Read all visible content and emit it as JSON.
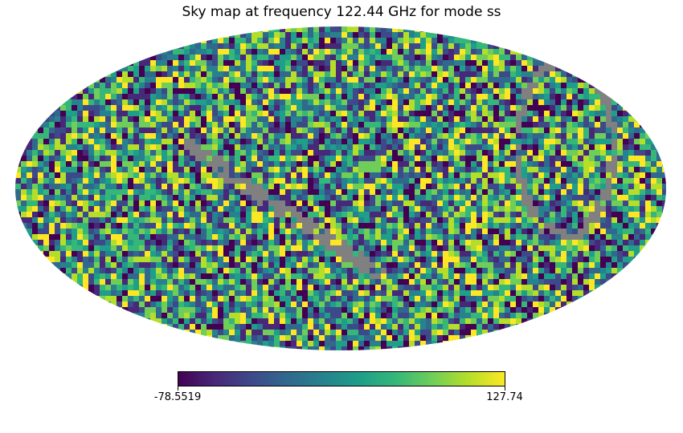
{
  "chart_data": {
    "type": "heatmap",
    "projection": "mollweide",
    "title": "Sky map at frequency 122.44 GHz for mode ss",
    "colormap": "viridis",
    "value_range": [
      -78.5519,
      127.74
    ],
    "colorbar": {
      "min_label": "-78.5519",
      "max_label": "127.74",
      "orientation": "horizontal"
    },
    "masked_color": "#808080",
    "masked_regions": [
      "galactic-plane band",
      "ecliptic-like arcs near edges"
    ]
  }
}
